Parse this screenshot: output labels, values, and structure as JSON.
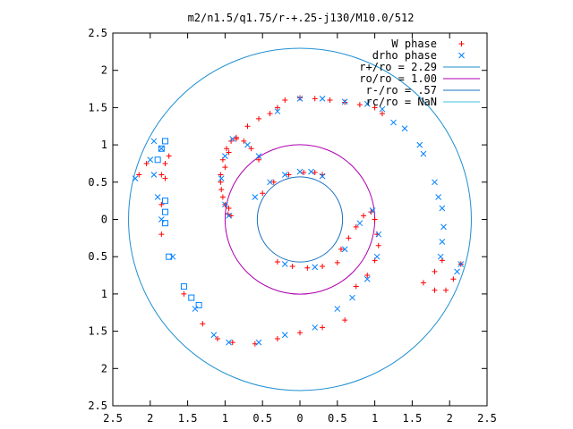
{
  "chart_data": {
    "type": "scatter",
    "title": "m2/n1.5/q1.75/r-+.25-j130/M10.0/512",
    "xlabel": "",
    "ylabel": "",
    "xlim": [
      -2.5,
      2.5
    ],
    "ylim": [
      -2.5,
      2.5
    ],
    "x_ticks": [
      -2.5,
      -2,
      -1.5,
      -1,
      -0.5,
      0,
      0.5,
      1,
      1.5,
      2,
      2.5
    ],
    "y_ticks": [
      2.5,
      2,
      1.5,
      1,
      0.5,
      0,
      -0.5,
      -1,
      -1.5,
      -2,
      -2.5
    ],
    "x_tick_labels": [
      "2.5",
      "2",
      "1.5",
      "1",
      "0.5",
      "0",
      "0.5",
      "1",
      "1.5",
      "2",
      "2.5"
    ],
    "y_tick_labels": [
      "2.5",
      "2",
      "1.5",
      "1",
      "0.5",
      "0",
      "0.5",
      "1",
      "1.5",
      "2",
      "2.5"
    ],
    "grid": false,
    "legend_position": "top-right",
    "legend": [
      {
        "label": "W phase",
        "kind": "marker",
        "marker": "plus",
        "color": "#ff0000"
      },
      {
        "label": "drho phase",
        "kind": "marker",
        "marker": "cross",
        "color": "#0080ff"
      },
      {
        "label": "r+/ro = 2.29",
        "kind": "line",
        "color": "#1e8fd0"
      },
      {
        "label": "ro/ro = 1.00",
        "kind": "line",
        "color": "#b000b0"
      },
      {
        "label": "r-/ro = .57",
        "kind": "line",
        "color": "#1a70c0"
      },
      {
        "label": "rc/ro = NaN",
        "kind": "line",
        "color": "#40c0e0"
      }
    ],
    "circles": [
      {
        "name": "r+/ro",
        "radius": 2.29,
        "color": "#1e8fd0"
      },
      {
        "name": "ro/ro",
        "radius": 1.0,
        "color": "#b000b0"
      },
      {
        "name": "r-/ro",
        "radius": 0.57,
        "color": "#1a70c0"
      }
    ],
    "series": [
      {
        "name": "W phase",
        "marker": "plus",
        "color": "#ff0000",
        "points": [
          [
            -0.55,
            0.8
          ],
          [
            -0.65,
            0.95
          ],
          [
            -0.75,
            1.05
          ],
          [
            -0.85,
            1.1
          ],
          [
            -0.92,
            1.05
          ],
          [
            -0.98,
            0.95
          ],
          [
            -1.03,
            0.8
          ],
          [
            -1.06,
            0.6
          ],
          [
            -1.05,
            0.4
          ],
          [
            -1.0,
            0.2
          ],
          [
            -0.96,
            0.07
          ],
          [
            -0.92,
            0.05
          ],
          [
            -0.95,
            0.15
          ],
          [
            -1.03,
            0.3
          ],
          [
            -1.06,
            0.5
          ],
          [
            -1.0,
            0.7
          ],
          [
            -0.95,
            0.9
          ],
          [
            -0.85,
            1.08
          ],
          [
            -0.7,
            1.25
          ],
          [
            -0.55,
            1.35
          ],
          [
            -0.4,
            1.42
          ],
          [
            -0.3,
            1.5
          ],
          [
            -0.2,
            1.6
          ],
          [
            0.0,
            1.63
          ],
          [
            0.2,
            1.62
          ],
          [
            0.4,
            1.6
          ],
          [
            0.6,
            1.57
          ],
          [
            0.8,
            1.54
          ],
          [
            1.0,
            1.5
          ],
          [
            1.1,
            1.42
          ],
          [
            -0.5,
            0.35
          ],
          [
            -0.35,
            0.5
          ],
          [
            -0.15,
            0.6
          ],
          [
            0.05,
            0.63
          ],
          [
            0.2,
            0.63
          ],
          [
            0.3,
            0.6
          ],
          [
            0.55,
            -0.4
          ],
          [
            0.65,
            -0.25
          ],
          [
            0.75,
            -0.1
          ],
          [
            0.85,
            0.05
          ],
          [
            0.95,
            0.1
          ],
          [
            1.0,
            0.0
          ],
          [
            1.03,
            -0.2
          ],
          [
            1.05,
            -0.35
          ],
          [
            1.0,
            -0.55
          ],
          [
            0.9,
            -0.75
          ],
          [
            0.75,
            -0.9
          ],
          [
            -0.3,
            -0.57
          ],
          [
            -0.1,
            -0.63
          ],
          [
            0.1,
            -0.65
          ],
          [
            0.3,
            -0.63
          ],
          [
            0.5,
            -0.58
          ],
          [
            0.6,
            -1.35
          ],
          [
            0.3,
            -1.45
          ],
          [
            0.0,
            -1.52
          ],
          [
            -0.3,
            -1.6
          ],
          [
            -0.6,
            -1.67
          ],
          [
            -0.9,
            -1.65
          ],
          [
            -1.1,
            -1.6
          ],
          [
            -1.3,
            -1.4
          ],
          [
            -1.55,
            -1.0
          ],
          [
            -1.85,
            -0.2
          ],
          [
            -1.85,
            0.2
          ],
          [
            -1.8,
            0.75
          ],
          [
            -1.8,
            0.55
          ],
          [
            -1.85,
            0.6
          ],
          [
            -1.75,
            0.85
          ],
          [
            -2.15,
            0.6
          ],
          [
            -2.05,
            0.75
          ],
          [
            1.65,
            -0.85
          ],
          [
            1.8,
            -0.7
          ],
          [
            1.9,
            -0.55
          ],
          [
            1.8,
            -0.95
          ],
          [
            1.95,
            -0.95
          ],
          [
            2.05,
            -0.8
          ],
          [
            2.15,
            -0.6
          ]
        ]
      },
      {
        "name": "drho phase",
        "marker": "cross",
        "color": "#0080ff",
        "points": [
          [
            1.25,
            1.3
          ],
          [
            1.4,
            1.22
          ],
          [
            1.6,
            1.0
          ],
          [
            1.65,
            0.88
          ],
          [
            1.8,
            0.5
          ],
          [
            1.85,
            0.3
          ],
          [
            1.9,
            0.15
          ],
          [
            1.92,
            -0.1
          ],
          [
            1.9,
            -0.3
          ],
          [
            1.88,
            -0.5
          ],
          [
            2.1,
            -0.7
          ],
          [
            2.15,
            -0.6
          ],
          [
            -0.55,
            0.85
          ],
          [
            -0.7,
            1.0
          ],
          [
            -0.9,
            1.08
          ],
          [
            -1.0,
            0.85
          ],
          [
            -1.05,
            0.55
          ],
          [
            -1.0,
            0.2
          ],
          [
            -0.95,
            0.05
          ],
          [
            -0.6,
            0.3
          ],
          [
            -0.4,
            0.5
          ],
          [
            -0.2,
            0.6
          ],
          [
            0.0,
            0.64
          ],
          [
            0.15,
            0.64
          ],
          [
            0.3,
            0.58
          ],
          [
            0.6,
            -0.4
          ],
          [
            0.8,
            -0.05
          ],
          [
            0.97,
            0.12
          ],
          [
            1.05,
            -0.2
          ],
          [
            1.03,
            -0.5
          ],
          [
            0.9,
            -0.8
          ],
          [
            0.7,
            -1.05
          ],
          [
            0.5,
            -1.2
          ],
          [
            -0.2,
            -0.6
          ],
          [
            0.2,
            -0.64
          ],
          [
            0.2,
            -1.45
          ],
          [
            -0.2,
            -1.55
          ],
          [
            -0.55,
            -1.65
          ],
          [
            -0.95,
            -1.65
          ],
          [
            -1.15,
            -1.55
          ],
          [
            -1.4,
            -1.2
          ],
          [
            -1.7,
            -0.5
          ],
          [
            -1.85,
            0.0
          ],
          [
            -1.9,
            0.3
          ],
          [
            -1.95,
            0.6
          ],
          [
            -1.85,
            0.95
          ],
          [
            -1.95,
            1.05
          ],
          [
            -2.2,
            0.55
          ],
          [
            -2.0,
            0.8
          ],
          [
            -0.3,
            1.45
          ],
          [
            0.0,
            1.62
          ],
          [
            0.3,
            1.62
          ],
          [
            0.6,
            1.58
          ],
          [
            0.9,
            1.55
          ],
          [
            1.1,
            1.48
          ]
        ]
      },
      {
        "name": "drho phase (square)",
        "marker": "square",
        "color": "#0080ff",
        "points": [
          [
            -1.8,
            0.1
          ],
          [
            -1.8,
            -0.05
          ],
          [
            -1.8,
            0.25
          ],
          [
            -1.75,
            -0.5
          ],
          [
            -1.55,
            -0.9
          ],
          [
            -1.35,
            -1.15
          ],
          [
            -1.45,
            -1.05
          ],
          [
            -1.8,
            1.05
          ],
          [
            -1.9,
            0.8
          ],
          [
            -1.85,
            0.95
          ]
        ]
      }
    ]
  }
}
